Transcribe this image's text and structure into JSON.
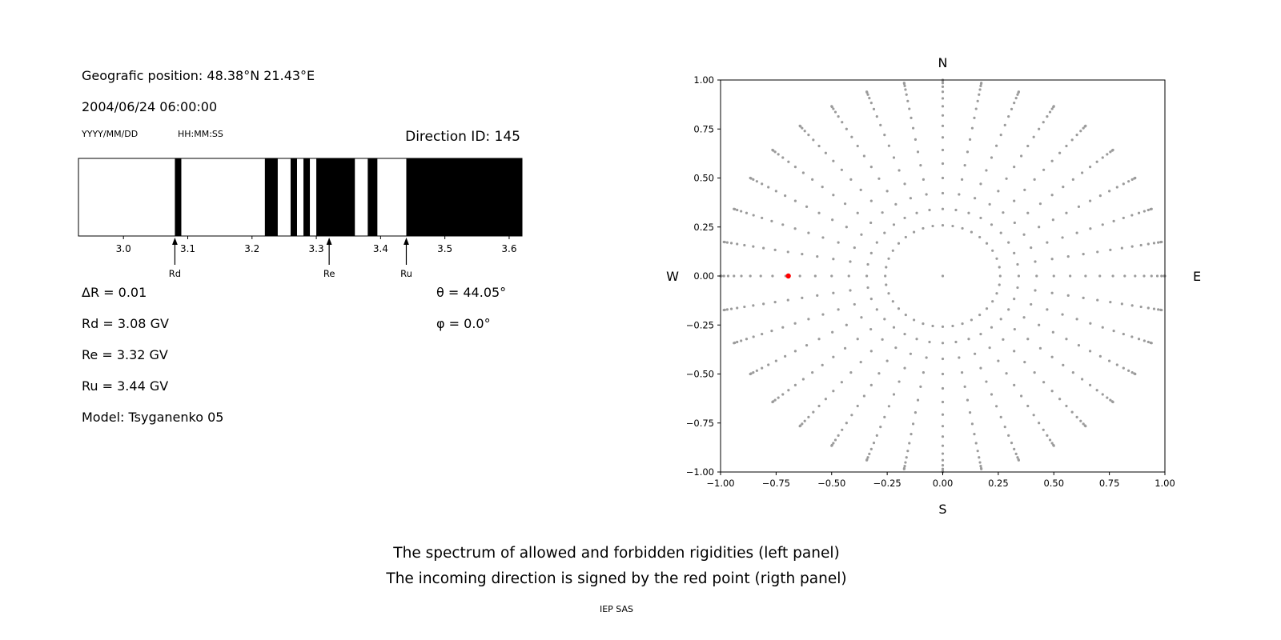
{
  "left_panel": {
    "geo_position": "Geografic position: 48.38°N 21.43°E",
    "datetime": "2004/06/24 06:00:00",
    "date_format_label": "YYYY/MM/DD",
    "time_format_label": "HH:MM:SS",
    "direction_id": "Direction ID: 145",
    "delta_r": "ΔR = 0.01",
    "rd": "Rd = 3.08 GV",
    "re": "Re = 3.32 GV",
    "ru": "Ru = 3.44 GV",
    "model": "Model: Tsyganenko 05",
    "theta": "θ = 44.05°",
    "phi": "φ = 0.0°"
  },
  "caption": {
    "line1": "The spectrum of allowed and forbidden rigidities (left panel)",
    "line2": "The incoming direction is signed by the red point (rigth panel)",
    "credit": "IEP SAS"
  },
  "chart_data": [
    {
      "type": "bar",
      "name": "rigidity-spectrum",
      "description": "Barcode-style spectrum of allowed (black) and forbidden (white) rigidities in GV",
      "xlim": [
        2.93,
        3.62
      ],
      "xticks": [
        3.0,
        3.1,
        3.2,
        3.3,
        3.4,
        3.5,
        3.6
      ],
      "xtick_labels": [
        "3.0",
        "3.1",
        "3.2",
        "3.3",
        "3.4",
        "3.5",
        "3.6"
      ],
      "bands": [
        [
          3.08,
          3.09
        ],
        [
          3.22,
          3.24
        ],
        [
          3.26,
          3.27
        ],
        [
          3.28,
          3.29
        ],
        [
          3.3,
          3.36
        ],
        [
          3.38,
          3.395
        ],
        [
          3.44,
          3.62
        ]
      ],
      "band_color": "#000000",
      "markers": [
        {
          "label": "Rd",
          "value": 3.08
        },
        {
          "label": "Re",
          "value": 3.32
        },
        {
          "label": "Ru",
          "value": 3.44
        }
      ]
    },
    {
      "type": "scatter",
      "name": "incoming-direction-map",
      "description": "Sky map of directions; gray dotted radial spokes r=sin(zenith) for azimuths every 10 deg; red point marks the incoming direction",
      "xlim": [
        -1.0,
        1.0
      ],
      "ylim": [
        -1.0,
        1.0
      ],
      "xticks": [
        -1.0,
        -0.75,
        -0.5,
        -0.25,
        0.0,
        0.25,
        0.5,
        0.75,
        1.0
      ],
      "xtick_labels": [
        "−1.00",
        "−0.75",
        "−0.50",
        "−0.25",
        "0.00",
        "0.25",
        "0.50",
        "0.75",
        "1.00"
      ],
      "yticks": [
        -1.0,
        -0.75,
        -0.5,
        -0.25,
        0.0,
        0.25,
        0.5,
        0.75,
        1.0
      ],
      "ytick_labels": [
        "−1.00",
        "−0.75",
        "−0.50",
        "−0.25",
        "0.00",
        "0.25",
        "0.50",
        "0.75",
        "1.00"
      ],
      "compass": {
        "top": "N",
        "bottom": "S",
        "left": "W",
        "right": "E"
      },
      "dot_color": "#9b9b9b",
      "spokes": {
        "azimuth_start_deg": 0,
        "azimuth_step_deg": 10,
        "azimuth_count": 36,
        "zenith_start_deg": 15,
        "zenith_step_deg": 5,
        "zenith_end_deg": 90,
        "center_dot": true,
        "dot_radius_px": 1.6
      },
      "red_point": {
        "x": -0.695,
        "y": 0.0,
        "color": "#ff0000"
      }
    }
  ]
}
